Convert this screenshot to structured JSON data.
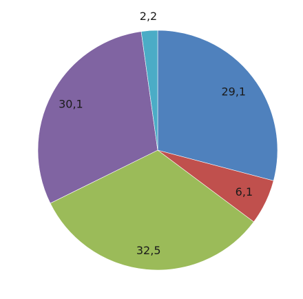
{
  "chart_data": {
    "type": "pie",
    "categories": [
      "",
      "",
      "",
      "",
      ""
    ],
    "values": [
      29.1,
      6.1,
      32.5,
      30.1,
      2.2
    ],
    "value_labels": [
      "29,1",
      "6,1",
      "32,5",
      "30,1",
      "2,2"
    ],
    "colors": [
      "#4f81bd",
      "#c0504d",
      "#9bbb59",
      "#8064a2",
      "#4bacc6"
    ],
    "start_angle_deg": 0,
    "direction": "clockwise",
    "legend": "none",
    "title": ""
  }
}
